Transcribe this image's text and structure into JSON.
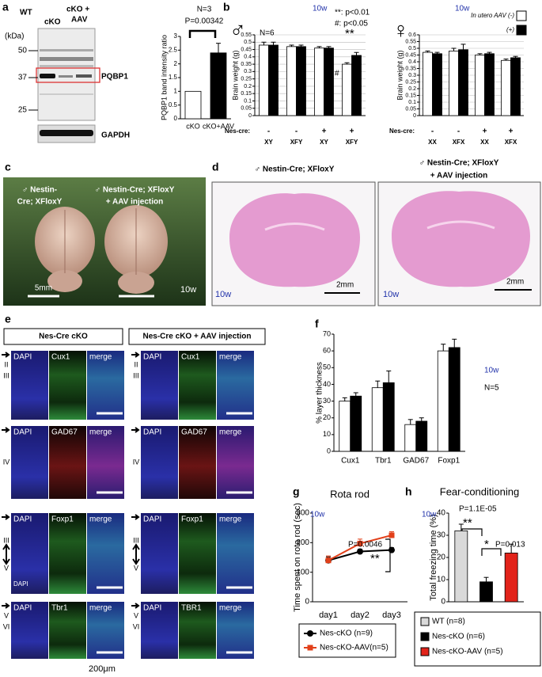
{
  "panel_a": {
    "label": "a",
    "kda_label": "(kDa)",
    "markers": [
      "50",
      "37",
      "25"
    ],
    "lanes": [
      "WT",
      "cKO",
      "cKO +",
      "AAV"
    ],
    "band": "PQBP1",
    "loading": "GAPDH"
  },
  "panel_c": {
    "label": "c",
    "left": [
      "♂ Nestin-",
      "Cre; XFloxY"
    ],
    "right": [
      "♂ Nestin-Cre; XFloxY",
      "+ AAV injection"
    ],
    "scale": "5mm",
    "age": "10w"
  },
  "panel_d": {
    "label": "d",
    "left": "♂ Nestin-Cre; XFloxY",
    "right": [
      "♂ Nestin-Cre; XFloxY",
      "+ AAV injection"
    ],
    "scale": [
      "2mm",
      "2mm"
    ],
    "age": [
      "10w",
      "10w"
    ]
  },
  "panel_e": {
    "label": "e",
    "headers": [
      "Nes-Cre cKO",
      "Nes-Cre cKO + AAV injection"
    ],
    "scale": "200μm",
    "columns": [
      {
        "rows": [
          {
            "stains": [
              "DAPI",
              "Cux1",
              "merge"
            ],
            "layers": [
              "II",
              "III"
            ]
          },
          {
            "stains": [
              "DAPI",
              "GAD67",
              "merge"
            ],
            "layers": [
              "IV"
            ]
          },
          {
            "stains": [
              "DAPI",
              "Foxp1",
              "merge"
            ],
            "layers": [
              "III",
              "V"
            ],
            "note": "DAPI"
          },
          {
            "stains": [
              "DAPI",
              "Tbr1",
              "merge"
            ],
            "layers": [
              "V",
              "VI"
            ]
          }
        ]
      },
      {
        "rows": [
          {
            "stains": [
              "DAPI",
              "Cux1",
              "merge"
            ],
            "layers": [
              "II",
              "III"
            ]
          },
          {
            "stains": [
              "DAPI",
              "GAD67",
              "merge"
            ],
            "layers": [
              "IV"
            ]
          },
          {
            "stains": [
              "DAPI",
              "Foxp1",
              "merge"
            ],
            "layers": [
              "III",
              "V"
            ]
          },
          {
            "stains": [
              "DAPI",
              "TBR1",
              "merge"
            ],
            "layers": [
              "V",
              "VI"
            ]
          }
        ]
      }
    ]
  },
  "chart_data": [
    {
      "type": "bar",
      "y_label": "PQBP1 band intensity ratio",
      "categories": [
        "cKO",
        "cKO+AAV"
      ],
      "values": [
        1,
        2.4
      ],
      "errors": [
        null,
        0.35
      ],
      "colors": [
        "#ffffff",
        "#000000"
      ],
      "ylim": [
        0,
        3
      ],
      "yticks": [
        0,
        0.5,
        1,
        1.5,
        2,
        2.5,
        3
      ],
      "annotations": [
        "N=3",
        "P=0.00342"
      ]
    },
    {
      "type": "bar",
      "panel_label": "b",
      "symbol": "♂",
      "y_label": "Brain weight (g)",
      "categories": [
        "XY",
        "XFY",
        "XY",
        "XFY"
      ],
      "nes_cre_label": "Nes-cre:",
      "nes_cre": [
        "-",
        "-",
        "+",
        "+"
      ],
      "series": [
        {
          "color": "#ffffff",
          "values": [
            0.48,
            0.47,
            0.46,
            0.35
          ],
          "errors": [
            0.02,
            0.01,
            0.01,
            0.01
          ]
        },
        {
          "color": "#000000",
          "values": [
            0.48,
            0.47,
            0.46,
            0.41
          ],
          "errors": [
            0.02,
            0.01,
            0.01,
            0.02
          ]
        }
      ],
      "ylim": [
        0,
        0.55
      ],
      "yticks": [
        0,
        0.05,
        0.1,
        0.15,
        0.2,
        0.25,
        0.3,
        0.35,
        0.4,
        0.45,
        0.5,
        0.55
      ],
      "grid": true,
      "annotations": [
        "N=6",
        "10w",
        "**: p<0.01",
        "#: p<0.05",
        "**",
        "#"
      ]
    },
    {
      "type": "bar",
      "symbol": "♀",
      "y_label": "Brain weight (g)",
      "categories": [
        "XX",
        "XFX",
        "XX",
        "XFX"
      ],
      "nes_cre_label": "Nes-cre:",
      "nes_cre": [
        "-",
        "-",
        "+",
        "+"
      ],
      "series": [
        {
          "name": "In utero AAV (-)",
          "color": "#ffffff",
          "values": [
            0.47,
            0.48,
            0.45,
            0.41
          ],
          "errors": [
            0.01,
            0.02,
            0.01,
            0.01
          ]
        },
        {
          "name": "(+)",
          "color": "#000000",
          "values": [
            0.46,
            0.49,
            0.46,
            0.43
          ],
          "errors": [
            0.01,
            0.04,
            0.01,
            0.01
          ]
        }
      ],
      "ylim": [
        0,
        0.6
      ],
      "yticks": [
        0,
        0.05,
        0.1,
        0.15,
        0.2,
        0.25,
        0.3,
        0.35,
        0.4,
        0.45,
        0.5,
        0.55,
        0.6
      ],
      "grid": true,
      "annotations": [
        "10w"
      ]
    },
    {
      "type": "bar",
      "panel_label": "f",
      "y_label": "% layer thickness",
      "categories": [
        "Cux1",
        "Tbr1",
        "GAD67",
        "Foxp1"
      ],
      "series": [
        {
          "color": "#ffffff",
          "values": [
            30,
            38,
            16,
            60
          ],
          "errors": [
            2,
            4,
            3,
            4
          ]
        },
        {
          "color": "#000000",
          "values": [
            33,
            41,
            18,
            62
          ],
          "errors": [
            2,
            7,
            2,
            5
          ]
        }
      ],
      "ylim": [
        0,
        70
      ],
      "yticks": [
        0,
        10,
        20,
        30,
        40,
        50,
        60,
        70
      ],
      "annotations": [
        "10w",
        "N=5"
      ]
    },
    {
      "type": "line",
      "panel_label": "g",
      "title": "Rota rod",
      "y_label": "Time spent on rota rod (sec)",
      "categories": [
        "day1",
        "day2",
        "day3"
      ],
      "series": [
        {
          "name": "Nes-cKO (n=9)",
          "color": "#000000",
          "values": [
            140,
            170,
            175
          ],
          "errors": [
            12,
            8,
            8
          ]
        },
        {
          "name": "Nes-cKO-AAV(n=5)",
          "color": "#e2401a",
          "values": [
            140,
            197,
            225
          ],
          "errors": [
            15,
            15,
            12
          ]
        }
      ],
      "ylim": [
        0,
        300
      ],
      "yticks": [
        0,
        100,
        200,
        300
      ],
      "annotations": [
        "10w",
        "P=0.0046",
        "**"
      ]
    },
    {
      "type": "bar",
      "panel_label": "h",
      "title": "Fear-conditioning",
      "y_label": "Total freezing time (%)",
      "categories": [
        "WT (n=8)",
        "Nes-cKO (n=6)",
        "Nes-cKO-AAV (n=5)"
      ],
      "values": [
        32,
        9,
        22
      ],
      "errors": [
        3,
        2,
        4
      ],
      "colors": [
        "#d9d9d9",
        "#000000",
        "#e2231a"
      ],
      "ylim": [
        0,
        40
      ],
      "yticks": [
        0,
        10,
        20,
        30,
        40
      ],
      "annotations": [
        "10w",
        "P=1.1E-05",
        "**",
        "*",
        "P=0.013"
      ]
    }
  ]
}
